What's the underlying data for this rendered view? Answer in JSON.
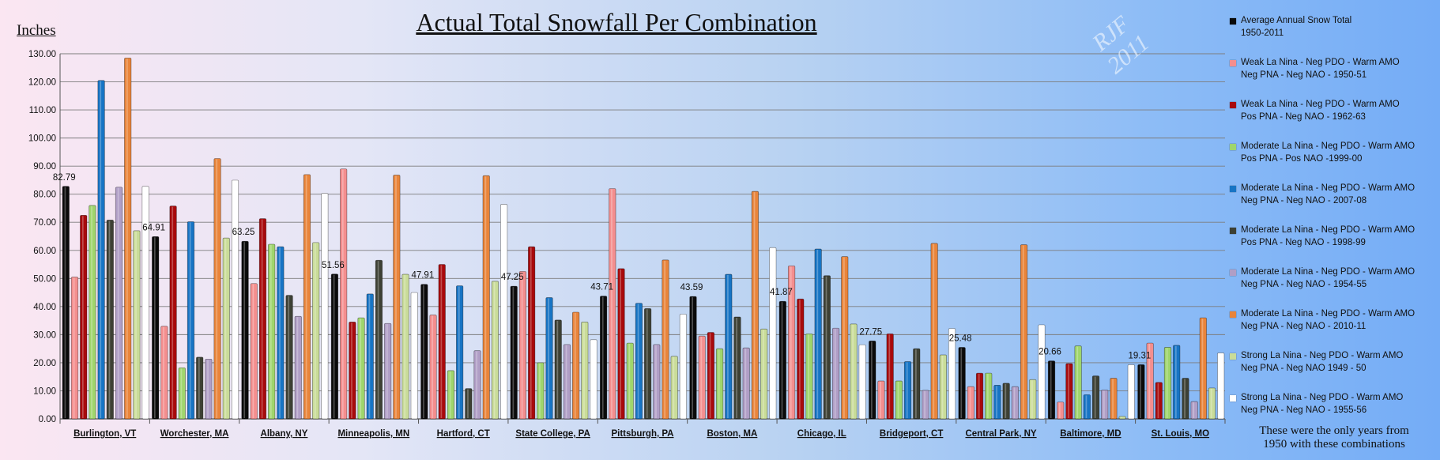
{
  "chart_data": {
    "type": "bar",
    "title": "Actual Total Snowfall Per Combination",
    "ylabel": "Inches",
    "xlabel": "",
    "ylim": [
      0,
      130
    ],
    "yticks": [
      "0.00",
      "10.00",
      "20.00",
      "30.00",
      "40.00",
      "50.00",
      "60.00",
      "70.00",
      "80.00",
      "90.00",
      "100.00",
      "110.00",
      "120.00",
      "130.00"
    ],
    "grid": true,
    "legend_position": "right",
    "categories": [
      "Burlington, VT",
      "Worchester, MA",
      "Albany, NY",
      "Minneapolis,  MN",
      "Hartford, CT",
      "State College, PA",
      "Pittsburgh, PA",
      "Boston, MA",
      "Chicago, IL",
      "Bridgeport, CT",
      "Central Park, NY",
      "Baltimore, MD",
      "St. Louis,  MO"
    ],
    "average_labels": [
      "82.79",
      "64.91",
      "63.25",
      "51.56",
      "47.91",
      "47.25",
      "43.71",
      "43.59",
      "41.87",
      "27.75",
      "25.48",
      "20.66",
      "19.31"
    ],
    "series": [
      {
        "name": "Average Annual  Snow Total\n1950-2011",
        "color": "#0a0a0a",
        "values": [
          82.79,
          64.91,
          63.25,
          51.56,
          47.91,
          47.25,
          43.71,
          43.59,
          41.87,
          27.75,
          25.48,
          20.66,
          19.31
        ]
      },
      {
        "name": "Weak La Nina - Neg PDO - Warm AMO\nNeg PNA - Neg NAO - 1950-51",
        "color": "#f48e8e",
        "values": [
          50.5,
          33.0,
          48.2,
          89.0,
          37.0,
          52.5,
          82.0,
          29.5,
          54.5,
          13.5,
          11.5,
          6.0,
          27.0
        ]
      },
      {
        "name": "Weak La Nina - Neg PDO - Warm AMO\nPos PNA - Neg NAO - 1962-63",
        "color": "#a80a0c",
        "values": [
          72.5,
          75.8,
          71.3,
          34.5,
          55.0,
          61.3,
          53.5,
          30.8,
          42.7,
          30.3,
          16.3,
          19.7,
          13.0
        ]
      },
      {
        "name": "Moderate La Nina - Neg PDO - Warm AMO\nPos PNA - Pos NAO -1999-00",
        "color": "#9fd56c",
        "values": [
          76.0,
          18.2,
          62.2,
          36.0,
          17.2,
          20.0,
          27.0,
          25.0,
          30.3,
          13.5,
          16.3,
          26.0,
          25.5
        ]
      },
      {
        "name": "Moderate La Nina - Neg PDO - Warm AMO\nNeg PNA - Neg NAO - 2007-08",
        "color": "#1774c4",
        "values": [
          120.5,
          70.2,
          61.3,
          44.5,
          47.4,
          43.2,
          41.2,
          51.5,
          60.5,
          20.4,
          12.0,
          8.6,
          26.2
        ]
      },
      {
        "name": "Moderate La Nina - Neg PDO - Warm AMO\nPos PNA - Neg NAO - 1998-99",
        "color": "#3d4034",
        "values": [
          70.8,
          22.0,
          44.0,
          56.5,
          10.8,
          35.2,
          39.3,
          36.3,
          51.0,
          25.0,
          12.7,
          15.3,
          14.5
        ]
      },
      {
        "name": "Moderate La Nina - Neg PDO - Warm AMO\nNeg PNA - Neg NAO - 1954-55",
        "color": "#b09ec6",
        "values": [
          82.5,
          21.3,
          36.5,
          34.0,
          24.3,
          26.5,
          26.5,
          25.3,
          32.3,
          10.2,
          11.5,
          10.3,
          6.2
        ]
      },
      {
        "name": "Moderate La Nina - Neg PDO - Warm AMO\nNeg PNA - Neg NAO - 2010-11",
        "color": "#e9843a",
        "values": [
          128.5,
          92.7,
          87.0,
          86.8,
          86.6,
          38.0,
          56.6,
          81.0,
          57.8,
          62.5,
          62.0,
          14.5,
          36.0
        ]
      },
      {
        "name": "Strong La Nina - Neg PDO - Warm AMO\nNeg PNA - Neg NAO 1949 - 50",
        "color": "#c9dc98",
        "values": [
          67.0,
          64.4,
          62.8,
          51.5,
          49.0,
          34.5,
          22.3,
          32.0,
          33.8,
          22.8,
          14.0,
          0.9,
          11.0
        ]
      },
      {
        "name": "Strong La Nina - Neg PDO - Warm AMO\nNeg PNA - Neg NAO - 1955-56",
        "color": "#ffffff",
        "values": [
          82.8,
          85.0,
          80.3,
          45.0,
          76.4,
          28.2,
          37.3,
          61.0,
          26.4,
          32.2,
          33.5,
          19.3,
          23.5
        ]
      }
    ]
  },
  "watermark": "RJF\n2011",
  "footnote": "These were the only years from\n1950 with these combinations"
}
